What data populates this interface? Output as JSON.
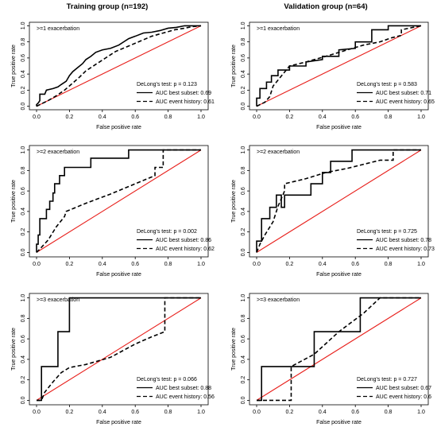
{
  "columns": {
    "left": "Training group (n=192)",
    "right": "Validation group (n=64)"
  },
  "chart_data": [
    {
      "type": "line",
      "panel": "training-1",
      "annotation": ">=1 exacerbation",
      "xlabel": "False positive rate",
      "ylabel": "True positive rate",
      "xlim": [
        0,
        1
      ],
      "ylim": [
        0,
        1
      ],
      "xticks": [
        "0.0",
        "0.2",
        "0.4",
        "0.6",
        "0.8",
        "1.0"
      ],
      "yticks": [
        "0.0",
        "0.2",
        "0.4",
        "0.6",
        "0.8",
        "1.0"
      ],
      "delong": "DeLong's test: p = 0.123",
      "legend": [
        "AUC best subset: 0.69",
        "AUC event history: 0.61"
      ],
      "series": [
        {
          "style": "solid",
          "points": [
            [
              0,
              0
            ],
            [
              0,
              0.02
            ],
            [
              0.01,
              0.04
            ],
            [
              0.02,
              0.07
            ],
            [
              0.02,
              0.15
            ],
            [
              0.05,
              0.15
            ],
            [
              0.06,
              0.2
            ],
            [
              0.1,
              0.22
            ],
            [
              0.13,
              0.24
            ],
            [
              0.15,
              0.27
            ],
            [
              0.18,
              0.31
            ],
            [
              0.2,
              0.38
            ],
            [
              0.22,
              0.43
            ],
            [
              0.25,
              0.48
            ],
            [
              0.28,
              0.53
            ],
            [
              0.3,
              0.58
            ],
            [
              0.33,
              0.62
            ],
            [
              0.36,
              0.67
            ],
            [
              0.4,
              0.7
            ],
            [
              0.45,
              0.72
            ],
            [
              0.5,
              0.76
            ],
            [
              0.53,
              0.8
            ],
            [
              0.56,
              0.84
            ],
            [
              0.6,
              0.87
            ],
            [
              0.65,
              0.91
            ],
            [
              0.7,
              0.92
            ],
            [
              0.75,
              0.94
            ],
            [
              0.8,
              0.97
            ],
            [
              0.85,
              0.98
            ],
            [
              0.9,
              1.0
            ],
            [
              1.0,
              1.0
            ]
          ]
        },
        {
          "style": "dashed",
          "points": [
            [
              0,
              0
            ],
            [
              0.03,
              0.03
            ],
            [
              0.07,
              0.07
            ],
            [
              0.12,
              0.13
            ],
            [
              0.17,
              0.2
            ],
            [
              0.21,
              0.27
            ],
            [
              0.26,
              0.36
            ],
            [
              0.3,
              0.44
            ],
            [
              0.36,
              0.52
            ],
            [
              0.42,
              0.6
            ],
            [
              0.48,
              0.68
            ],
            [
              0.55,
              0.74
            ],
            [
              0.62,
              0.8
            ],
            [
              0.7,
              0.87
            ],
            [
              0.77,
              0.91
            ],
            [
              0.84,
              0.95
            ],
            [
              0.9,
              0.97
            ],
            [
              0.95,
              0.99
            ],
            [
              1.0,
              1.0
            ]
          ]
        }
      ],
      "reference": [
        [
          0,
          0
        ],
        [
          1,
          1
        ]
      ]
    },
    {
      "type": "line",
      "panel": "validation-1",
      "annotation": ">=1 exacerbation",
      "xlabel": "False positive rate",
      "ylabel": "True positive rate",
      "xlim": [
        0,
        1
      ],
      "ylim": [
        0,
        1
      ],
      "xticks": [
        "0.0",
        "0.2",
        "0.4",
        "0.6",
        "0.8",
        "1.0"
      ],
      "yticks": [
        "0.0",
        "0.2",
        "0.4",
        "0.6",
        "0.8",
        "1.0"
      ],
      "delong": "DeLong's test: p = 0.583",
      "legend": [
        "AUC best subset: 0.71",
        "AUC event history: 0.65"
      ],
      "series": [
        {
          "style": "solid",
          "points": [
            [
              0,
              0
            ],
            [
              0,
              0.1
            ],
            [
              0.02,
              0.1
            ],
            [
              0.02,
              0.22
            ],
            [
              0.06,
              0.22
            ],
            [
              0.06,
              0.3
            ],
            [
              0.09,
              0.3
            ],
            [
              0.09,
              0.38
            ],
            [
              0.13,
              0.38
            ],
            [
              0.13,
              0.45
            ],
            [
              0.2,
              0.45
            ],
            [
              0.2,
              0.5
            ],
            [
              0.3,
              0.5
            ],
            [
              0.3,
              0.55
            ],
            [
              0.4,
              0.58
            ],
            [
              0.4,
              0.62
            ],
            [
              0.5,
              0.62
            ],
            [
              0.5,
              0.7
            ],
            [
              0.6,
              0.72
            ],
            [
              0.6,
              0.8
            ],
            [
              0.7,
              0.8
            ],
            [
              0.7,
              0.95
            ],
            [
              0.8,
              0.95
            ],
            [
              0.8,
              1.0
            ],
            [
              1.0,
              1.0
            ]
          ]
        },
        {
          "style": "dashed",
          "points": [
            [
              0,
              0
            ],
            [
              0.05,
              0.05
            ],
            [
              0.08,
              0.12
            ],
            [
              0.1,
              0.25
            ],
            [
              0.14,
              0.35
            ],
            [
              0.2,
              0.5
            ],
            [
              0.3,
              0.55
            ],
            [
              0.42,
              0.62
            ],
            [
              0.55,
              0.7
            ],
            [
              0.65,
              0.76
            ],
            [
              0.75,
              0.8
            ],
            [
              0.82,
              0.85
            ],
            [
              0.88,
              0.88
            ],
            [
              0.88,
              0.95
            ],
            [
              0.95,
              0.98
            ],
            [
              1.0,
              1.0
            ]
          ]
        }
      ],
      "reference": [
        [
          0,
          0
        ],
        [
          1,
          1
        ]
      ]
    },
    {
      "type": "line",
      "panel": "training-2",
      "annotation": ">=2 exacerbation",
      "xlabel": "False positive rate",
      "ylabel": "True positive rate",
      "xlim": [
        0,
        1
      ],
      "ylim": [
        0,
        1
      ],
      "xticks": [
        "0.0",
        "0.2",
        "0.4",
        "0.6",
        "0.8",
        "1.0"
      ],
      "yticks": [
        "0.0",
        "0.2",
        "0.4",
        "0.6",
        "0.8",
        "1.0"
      ],
      "delong": "DeLong's test: p = 0.002",
      "legend": [
        "AUC best subset: 0.86",
        "AUC event history: 0.62"
      ],
      "series": [
        {
          "style": "solid",
          "points": [
            [
              0,
              0
            ],
            [
              0,
              0.08
            ],
            [
              0.01,
              0.08
            ],
            [
              0.01,
              0.17
            ],
            [
              0.02,
              0.17
            ],
            [
              0.02,
              0.33
            ],
            [
              0.06,
              0.33
            ],
            [
              0.06,
              0.42
            ],
            [
              0.08,
              0.42
            ],
            [
              0.08,
              0.5
            ],
            [
              0.1,
              0.5
            ],
            [
              0.1,
              0.58
            ],
            [
              0.11,
              0.58
            ],
            [
              0.11,
              0.67
            ],
            [
              0.14,
              0.67
            ],
            [
              0.14,
              0.75
            ],
            [
              0.17,
              0.75
            ],
            [
              0.17,
              0.83
            ],
            [
              0.33,
              0.83
            ],
            [
              0.33,
              0.92
            ],
            [
              0.56,
              0.92
            ],
            [
              0.56,
              1.0
            ],
            [
              1.0,
              1.0
            ]
          ]
        },
        {
          "style": "dashed",
          "points": [
            [
              0,
              0
            ],
            [
              0.03,
              0.05
            ],
            [
              0.07,
              0.12
            ],
            [
              0.12,
              0.25
            ],
            [
              0.17,
              0.35
            ],
            [
              0.18,
              0.4
            ],
            [
              0.3,
              0.48
            ],
            [
              0.45,
              0.57
            ],
            [
              0.6,
              0.67
            ],
            [
              0.72,
              0.75
            ],
            [
              0.72,
              0.83
            ],
            [
              0.77,
              0.83
            ],
            [
              0.77,
              1.0
            ],
            [
              1.0,
              1.0
            ]
          ]
        }
      ],
      "reference": [
        [
          0,
          0
        ],
        [
          1,
          1
        ]
      ]
    },
    {
      "type": "line",
      "panel": "validation-2",
      "annotation": ">=2 exacerbation",
      "xlabel": "False positive rate",
      "ylabel": "True positive rate",
      "xlim": [
        0,
        1
      ],
      "ylim": [
        0,
        1
      ],
      "xticks": [
        "0.0",
        "0.2",
        "0.4",
        "0.6",
        "0.8",
        "1.0"
      ],
      "yticks": [
        "0.0",
        "0.2",
        "0.4",
        "0.6",
        "0.8",
        "1.0"
      ],
      "delong": "DeLong's test: p = 0.725",
      "legend": [
        "AUC best subset: 0.78",
        "AUC event history: 0.73"
      ],
      "series": [
        {
          "style": "solid",
          "points": [
            [
              0,
              0
            ],
            [
              0,
              0.11
            ],
            [
              0.03,
              0.11
            ],
            [
              0.03,
              0.33
            ],
            [
              0.08,
              0.33
            ],
            [
              0.08,
              0.44
            ],
            [
              0.12,
              0.44
            ],
            [
              0.12,
              0.56
            ],
            [
              0.15,
              0.56
            ],
            [
              0.15,
              0.44
            ],
            [
              0.17,
              0.44
            ],
            [
              0.17,
              0.56
            ],
            [
              0.33,
              0.56
            ],
            [
              0.33,
              0.67
            ],
            [
              0.4,
              0.67
            ],
            [
              0.4,
              0.78
            ],
            [
              0.45,
              0.78
            ],
            [
              0.45,
              0.89
            ],
            [
              0.58,
              0.89
            ],
            [
              0.58,
              1.0
            ],
            [
              1.0,
              1.0
            ]
          ]
        },
        {
          "style": "dashed",
          "points": [
            [
              0,
              0
            ],
            [
              0.02,
              0.08
            ],
            [
              0.05,
              0.17
            ],
            [
              0.1,
              0.3
            ],
            [
              0.13,
              0.45
            ],
            [
              0.17,
              0.6
            ],
            [
              0.17,
              0.67
            ],
            [
              0.3,
              0.72
            ],
            [
              0.42,
              0.78
            ],
            [
              0.55,
              0.82
            ],
            [
              0.65,
              0.86
            ],
            [
              0.75,
              0.9
            ],
            [
              0.83,
              0.9
            ],
            [
              0.83,
              1.0
            ],
            [
              1.0,
              1.0
            ]
          ]
        }
      ],
      "reference": [
        [
          0,
          0
        ],
        [
          1,
          1
        ]
      ]
    },
    {
      "type": "line",
      "panel": "training-3",
      "annotation": ">=3 exacerbation",
      "xlabel": "False positive rate",
      "ylabel": "True positive rate",
      "xlim": [
        0,
        1
      ],
      "ylim": [
        0,
        1
      ],
      "xticks": [
        "0.0",
        "0.2",
        "0.4",
        "0.6",
        "0.8",
        "1.0"
      ],
      "yticks": [
        "0.0",
        "0.2",
        "0.4",
        "0.6",
        "0.8",
        "1.0"
      ],
      "delong": "DeLong's test: p = 0.066",
      "legend": [
        "AUC best subset: 0.88",
        "AUC event history: 0.56"
      ],
      "series": [
        {
          "style": "solid",
          "points": [
            [
              0,
              0
            ],
            [
              0.03,
              0.0
            ],
            [
              0.03,
              0.33
            ],
            [
              0.13,
              0.33
            ],
            [
              0.13,
              0.67
            ],
            [
              0.2,
              0.67
            ],
            [
              0.2,
              1.0
            ],
            [
              1.0,
              1.0
            ]
          ]
        },
        {
          "style": "dashed",
          "points": [
            [
              0,
              0
            ],
            [
              0.03,
              0.0
            ],
            [
              0.05,
              0.08
            ],
            [
              0.1,
              0.18
            ],
            [
              0.15,
              0.27
            ],
            [
              0.2,
              0.32
            ],
            [
              0.3,
              0.35
            ],
            [
              0.45,
              0.42
            ],
            [
              0.6,
              0.55
            ],
            [
              0.7,
              0.62
            ],
            [
              0.78,
              0.67
            ],
            [
              0.78,
              1.0
            ],
            [
              1.0,
              1.0
            ]
          ]
        }
      ],
      "reference": [
        [
          0,
          0
        ],
        [
          1,
          1
        ]
      ]
    },
    {
      "type": "line",
      "panel": "validation-3",
      "annotation": ">=3 exacerbation",
      "xlabel": "False positive rate",
      "ylabel": "True positive rate",
      "xlim": [
        0,
        1
      ],
      "ylim": [
        0,
        1
      ],
      "xticks": [
        "0.0",
        "0.2",
        "0.4",
        "0.6",
        "0.8",
        "1.0"
      ],
      "yticks": [
        "0.0",
        "0.2",
        "0.4",
        "0.6",
        "0.8",
        "1.0"
      ],
      "delong": "DeLong's test: p = 0.727",
      "legend": [
        "AUC best subset: 0.67",
        "AUC event history: 0.6"
      ],
      "series": [
        {
          "style": "solid",
          "points": [
            [
              0,
              0
            ],
            [
              0.03,
              0.0
            ],
            [
              0.03,
              0.33
            ],
            [
              0.35,
              0.33
            ],
            [
              0.35,
              0.67
            ],
            [
              0.63,
              0.67
            ],
            [
              0.63,
              1.0
            ],
            [
              1.0,
              1.0
            ]
          ]
        },
        {
          "style": "dashed",
          "points": [
            [
              0,
              0
            ],
            [
              0.05,
              0.0
            ],
            [
              0.21,
              0.0
            ],
            [
              0.21,
              0.33
            ],
            [
              0.35,
              0.45
            ],
            [
              0.5,
              0.67
            ],
            [
              0.65,
              0.85
            ],
            [
              0.75,
              1.0
            ],
            [
              1.0,
              1.0
            ]
          ]
        }
      ],
      "reference": [
        [
          0,
          0
        ],
        [
          1,
          1
        ]
      ]
    }
  ],
  "colors": {
    "reference_line": "#e8201c",
    "series": "#000000",
    "axis": "#000000"
  }
}
